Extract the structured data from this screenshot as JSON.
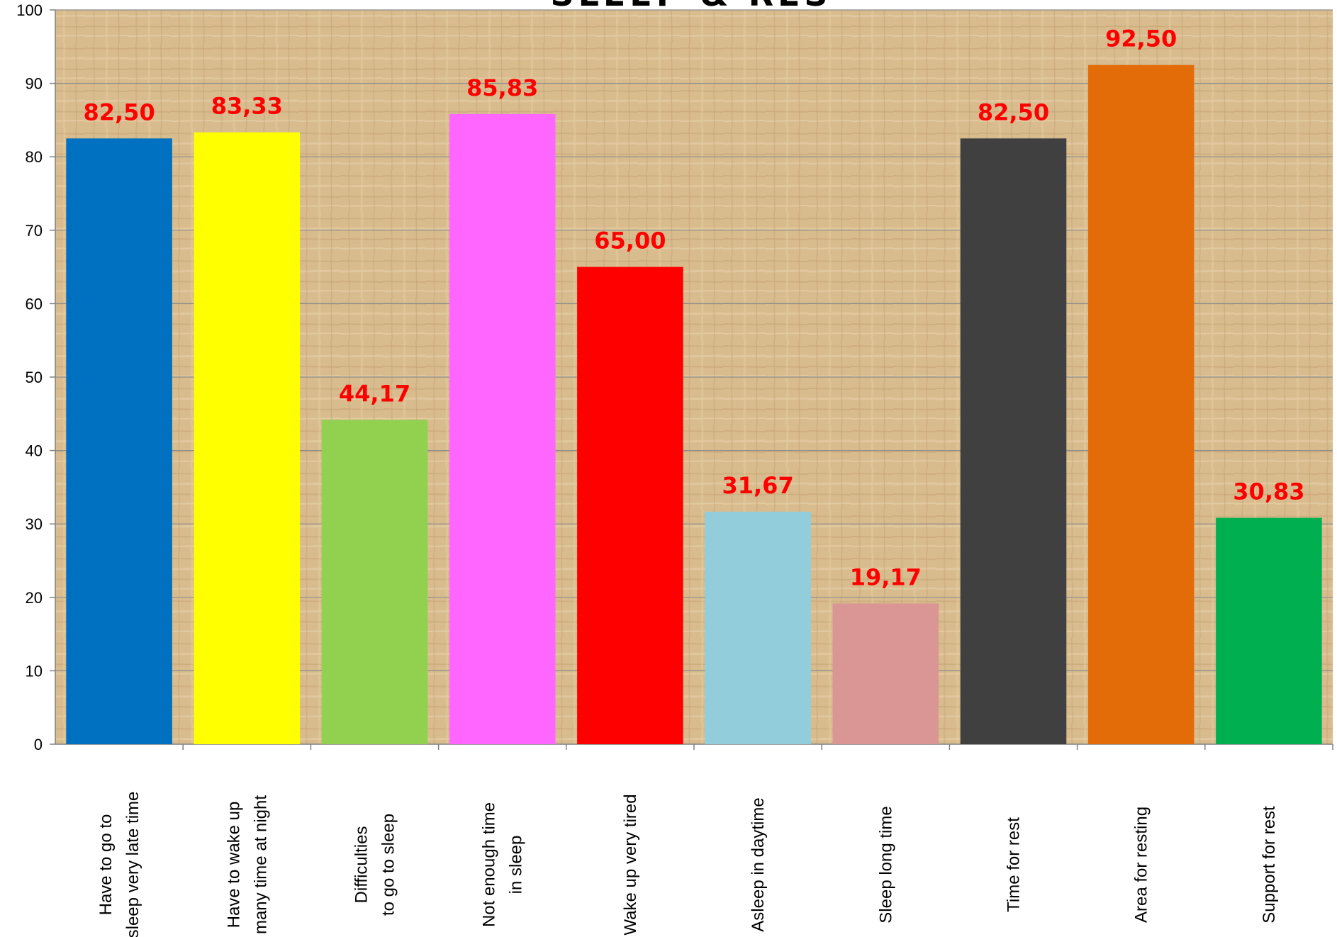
{
  "chart_data": {
    "type": "bar",
    "title": "SLEEP & RES",
    "xlabel": "",
    "ylabel": "",
    "ylim": [
      0,
      100
    ],
    "yticks": [
      0,
      10,
      20,
      30,
      40,
      50,
      60,
      70,
      80,
      90,
      100
    ],
    "grid": true,
    "legend": "none",
    "categories": [
      "Have to go to\nsleep very late time",
      "Have to wake up\nmany time at night",
      "Difficulties\nto go to sleep",
      "Not enough time\nin sleep",
      "Wake up very tired",
      "Asleep in daytime",
      "Sleep long time",
      "Time for rest",
      "Area for resting",
      "Support for rest"
    ],
    "values": [
      82.5,
      83.33,
      44.17,
      85.83,
      65.0,
      31.67,
      19.17,
      82.5,
      92.5,
      30.83
    ],
    "value_labels": [
      "82,50",
      "83,33",
      "44,17",
      "85,83",
      "65,00",
      "31,67",
      "19,17",
      "82,50",
      "92,50",
      "30,83"
    ],
    "colors": [
      "#0070C0",
      "#FFFF00",
      "#92D050",
      "#FF66FF",
      "#FF0000",
      "#92CDDC",
      "#D99694",
      "#404040",
      "#E36C09",
      "#00B050"
    ],
    "label_color": "#FF0000",
    "plot_background": "#D9BC8C"
  }
}
